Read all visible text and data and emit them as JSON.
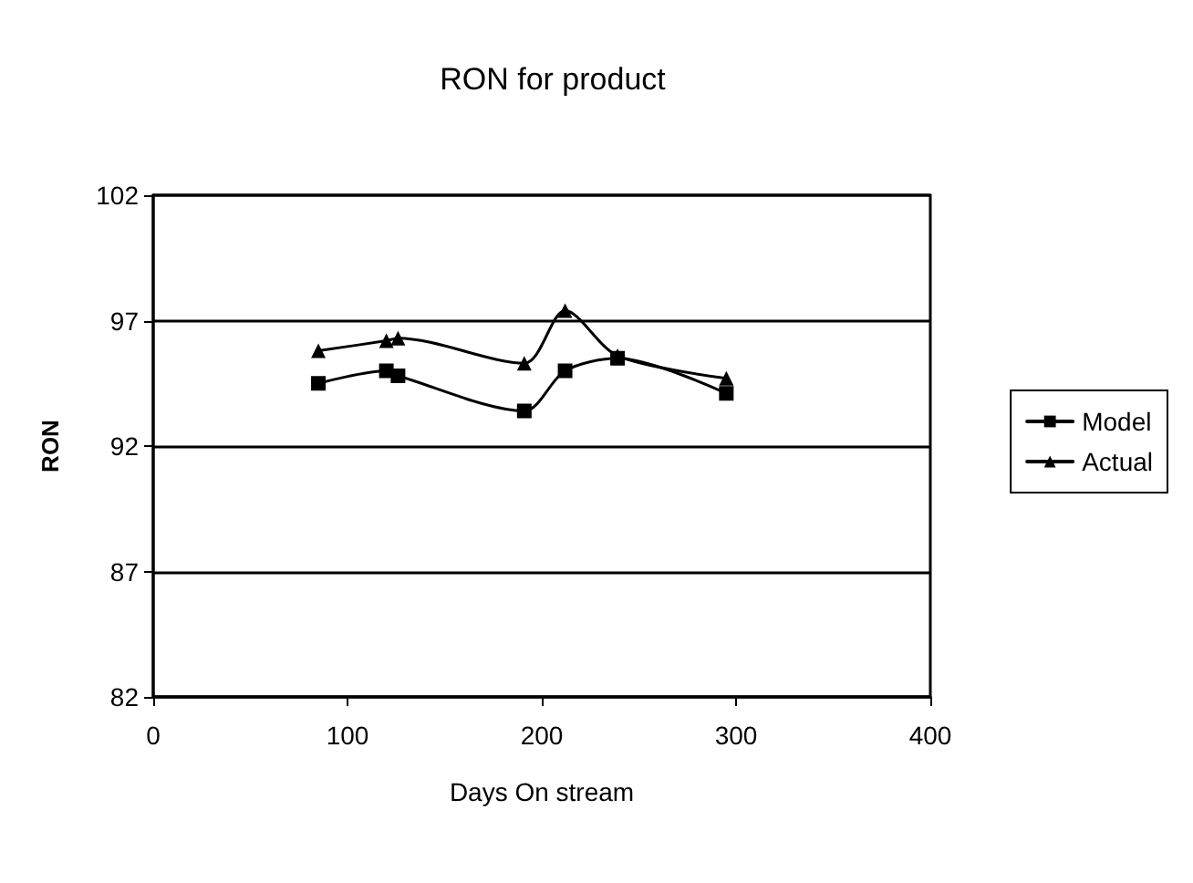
{
  "chart_data": {
    "type": "line",
    "title": "RON for product",
    "xlabel": "Days On stream",
    "ylabel": "RON",
    "x": [
      85,
      120,
      126,
      191,
      212,
      239,
      295
    ],
    "series": [
      {
        "name": "Model",
        "color": "#000000",
        "marker": "square",
        "values": [
          94.5,
          95.0,
          94.8,
          93.4,
          95.0,
          95.5,
          94.1
        ]
      },
      {
        "name": "Actual",
        "color": "#000000",
        "marker": "triangle",
        "values": [
          95.8,
          96.2,
          96.3,
          95.3,
          97.4,
          95.6,
          94.7
        ]
      }
    ],
    "xlim": [
      0,
      400
    ],
    "xticks": [
      0,
      100,
      200,
      300,
      400
    ],
    "ylim": [
      82,
      102
    ],
    "yticks": [
      82,
      87,
      92,
      97,
      102
    ],
    "grid": "y",
    "legend": "right",
    "line_style": "solid"
  }
}
